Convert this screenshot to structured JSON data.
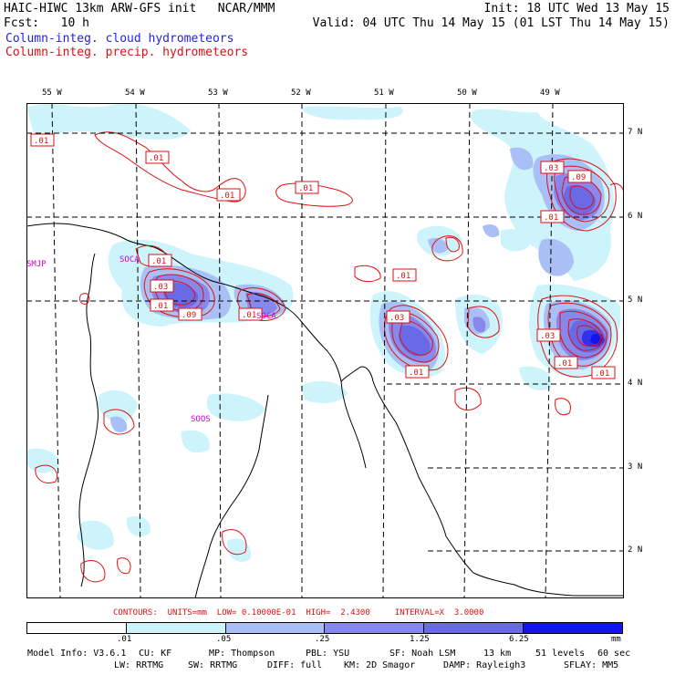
{
  "header": {
    "line1_left": "HAIC-HIWC 13km ARW-GFS init   NCAR/MMM",
    "line1_right": "Init: 18 UTC Wed 13 May 15",
    "line2_left": "Fcst:   10 h",
    "line2_right": "Valid: 04 UTC Thu 14 May 15 (01 LST Thu 14 May 15)",
    "field1": "Column-integ. cloud hydrometeors",
    "field2": "Column-integ. precip. hydrometeors"
  },
  "colors": {
    "cloud": "#2222ee",
    "precip": "#dd1111",
    "shade1": "#cdf3fb",
    "shade2": "#a9bff5",
    "shade3": "#8787ec",
    "shade4": "#6a6ae6",
    "shade5": "#3232ea",
    "shade6": "#1414ee"
  },
  "lon_labels": [
    "55 W",
    "54 W",
    "53 W",
    "52 W",
    "51 W",
    "50 W",
    "49 W"
  ],
  "lat_labels": [
    "7 N",
    "6 N",
    "5 N",
    "4 N",
    "3 N",
    "2 N"
  ],
  "stations": [
    "SMJP",
    "SOCA",
    "SOCA",
    "SOOS"
  ],
  "contour_labels": [
    ".01",
    ".01",
    ".01",
    ".01",
    ".01",
    ".01",
    ".03",
    ".01",
    ".09",
    ".01",
    ".03",
    ".01",
    ".03",
    ".09",
    ".01",
    ".03",
    ".01",
    ".01"
  ],
  "contour_info": "CONTOURS:  UNITS=mm  LOW= 0.10000E-01  HIGH=  2.4300     INTERVAL=X  3.0000",
  "colorbar": {
    "ticks": [
      ".01",
      ".05",
      ".25",
      "1.25",
      "6.25"
    ],
    "unit": "mm"
  },
  "footer": {
    "line1": [
      "Model Info: V3.6.1",
      "CU: KF",
      "MP: Thompson",
      "PBL: YSU",
      "SF: Noah LSM",
      "13 km",
      "51 levels",
      "60 sec"
    ],
    "line2": [
      "LW: RRTMG",
      "SW: RRTMG",
      "DIFF: full",
      "KM: 2D Smagor",
      "DAMP: Rayleigh3",
      "SFLAY: MM5"
    ]
  }
}
